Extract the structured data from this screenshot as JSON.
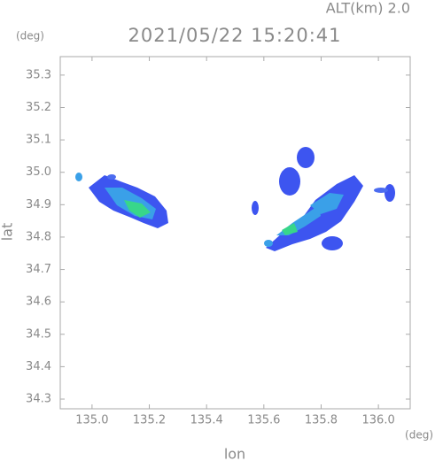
{
  "chart_data": {
    "type": "map",
    "title": "2021/05/22 15:20:41",
    "subtitle": "ALT(km) 2.0",
    "xlabel": "lon",
    "ylabel": "lat",
    "xunit": "(deg)",
    "yunit": "(deg)",
    "xlim": [
      134.889,
      136.111
    ],
    "ylim": [
      34.27,
      35.357
    ],
    "xticks": [
      {
        "value": 135,
        "label": "135.0"
      },
      135.2,
      135.4,
      135.6,
      135.8,
      {
        "value": 136,
        "label": "136.0"
      }
    ],
    "yticks": [
      34.3,
      34.4,
      34.5,
      34.6,
      34.7,
      34.8,
      34.9,
      {
        "value": 35,
        "label": "35.0"
      },
      35.1,
      35.2,
      35.3
    ]
  }
}
